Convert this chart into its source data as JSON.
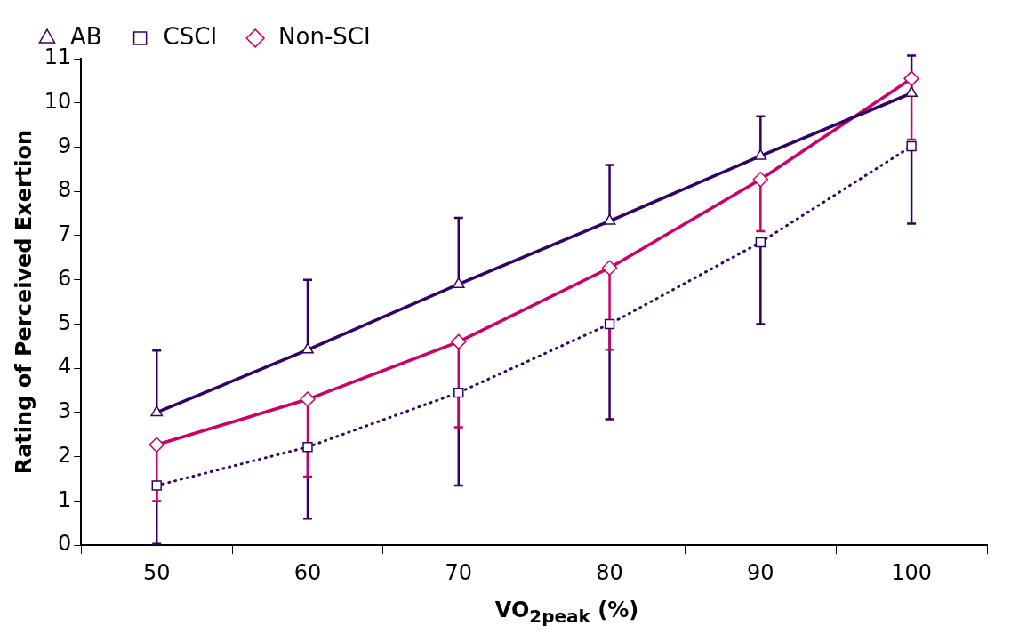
{
  "chart_data": {
    "type": "line",
    "xlabel": "VO$_{2peak}$ (%)",
    "ylabel": "Rating of Perceived Exertion",
    "categories": [
      "50",
      "60",
      "70",
      "80",
      "90",
      "100"
    ],
    "ylim": [
      0,
      11
    ],
    "yticks": [
      0,
      1,
      2,
      3,
      4,
      5,
      6,
      7,
      8,
      9,
      10,
      11
    ],
    "grid": false,
    "legend": "top left",
    "series": [
      {
        "name": "AB",
        "color": "#330066",
        "marker": "triangle",
        "line_style": "solid",
        "values": [
          3.0,
          4.42,
          5.9,
          7.33,
          8.8,
          10.22
        ],
        "errors": [
          [
            3.0,
            4.4
          ],
          [
            4.42,
            6.0
          ],
          [
            5.9,
            7.4
          ],
          [
            7.33,
            8.6
          ],
          [
            8.8,
            9.7
          ],
          [
            10.22,
            11.07
          ]
        ]
      },
      {
        "name": "CSCI",
        "color": "#330066",
        "marker": "square",
        "line_style": "dotted",
        "values": [
          1.35,
          2.22,
          3.45,
          5.0,
          6.85,
          9.02
        ],
        "errors": [
          [
            0.03,
            1.35
          ],
          [
            0.6,
            2.22
          ],
          [
            1.35,
            3.45
          ],
          [
            2.85,
            5.0
          ],
          [
            5.0,
            6.85
          ],
          [
            7.27,
            9.02
          ]
        ]
      },
      {
        "name": "Non-SCI",
        "color": "#cc0066",
        "marker": "diamond",
        "line_style": "solid",
        "values": [
          2.27,
          3.3,
          4.6,
          6.27,
          8.27,
          10.55
        ],
        "errors": [
          [
            1.0,
            2.27
          ],
          [
            1.55,
            3.3
          ],
          [
            2.67,
            4.6
          ],
          [
            4.42,
            6.27
          ],
          [
            7.1,
            8.27
          ],
          [
            9.17,
            10.55
          ]
        ]
      }
    ]
  }
}
